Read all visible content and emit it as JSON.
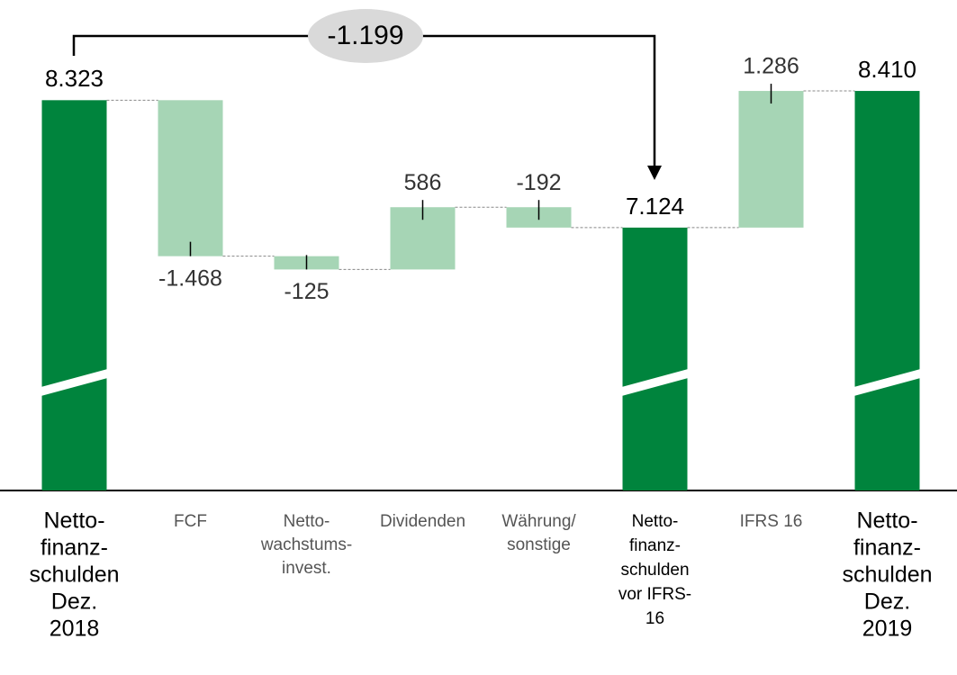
{
  "chart_data": {
    "type": "waterfall",
    "categories": [
      [
        "Netto-",
        "finanz-",
        "schulden",
        "Dez.",
        "2018"
      ],
      [
        "FCF"
      ],
      [
        "Netto-",
        "wachstums-",
        "invest."
      ],
      [
        "Dividenden"
      ],
      [
        "Währung/",
        "sonstige"
      ],
      [
        "Netto-",
        "finanz-",
        "schulden",
        "vor IFRS-",
        "16"
      ],
      [
        "IFRS 16"
      ],
      [
        "Netto-",
        "finanz-",
        "schulden",
        "Dez.",
        "2019"
      ]
    ],
    "values": [
      8323,
      -1468,
      -125,
      586,
      -192,
      7124,
      1286,
      8410
    ],
    "value_labels": [
      "8.323",
      "-1.468",
      "-125",
      "586",
      "-192",
      "7.124",
      "1.286",
      "8.410"
    ],
    "measure": [
      "total",
      "relative",
      "relative",
      "relative",
      "relative",
      "total",
      "relative",
      "total"
    ],
    "total_color": "#00843d",
    "relative_color": "#a6d5b5",
    "ylim": [
      4650,
      8800
    ],
    "annotation": {
      "value": -1199,
      "label": "-1.199"
    }
  }
}
